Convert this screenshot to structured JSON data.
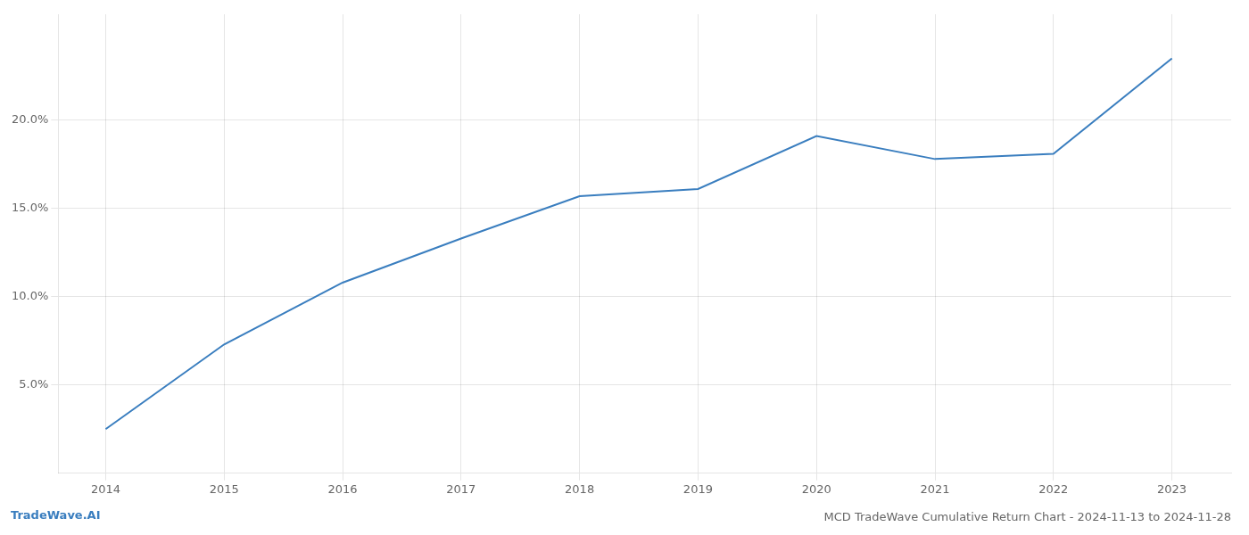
{
  "chart_data": {
    "type": "line",
    "title": "MCD TradeWave Cumulative Return Chart - 2024-11-13 to 2024-11-28",
    "annotations": [
      {
        "text": "TradeWave.AI",
        "color": "#3a7ebf"
      }
    ],
    "x": [
      2014,
      2015,
      2016,
      2017,
      2018,
      2019,
      2020,
      2021,
      2022,
      2023
    ],
    "values": [
      2.5,
      7.3,
      10.8,
      13.3,
      15.7,
      16.1,
      19.1,
      17.8,
      18.1,
      23.5
    ],
    "color": "#3a7ebf",
    "xlim": [
      2013.6,
      2023.5
    ],
    "ylim": [
      0,
      26
    ],
    "xticks": [
      2014,
      2015,
      2016,
      2017,
      2018,
      2019,
      2020,
      2021,
      2022,
      2023
    ],
    "yticks": [
      {
        "value": 5.0,
        "label": "5.0%"
      },
      {
        "value": 10.0,
        "label": "10.0%"
      },
      {
        "value": 15.0,
        "label": "15.0%"
      },
      {
        "value": 20.0,
        "label": "20.0%"
      }
    ],
    "grid": true
  }
}
